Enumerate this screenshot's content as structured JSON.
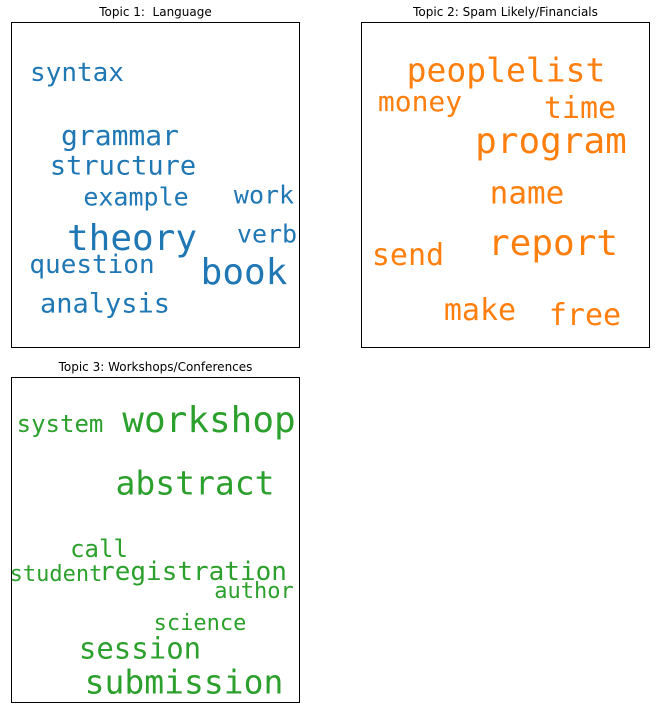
{
  "chart_data": [
    {
      "type": "wordcloud",
      "title": "Topic 1:  Language",
      "color": "#1f77b4",
      "words": [
        {
          "text": "syntax",
          "weight": 0.72
        },
        {
          "text": "grammar",
          "weight": 0.78
        },
        {
          "text": "structure",
          "weight": 0.75
        },
        {
          "text": "example",
          "weight": 0.68
        },
        {
          "text": "work",
          "weight": 0.7
        },
        {
          "text": "theory",
          "weight": 1.0
        },
        {
          "text": "verb",
          "weight": 0.7
        },
        {
          "text": "book",
          "weight": 1.0
        },
        {
          "text": "question",
          "weight": 0.72
        },
        {
          "text": "analysis",
          "weight": 0.75
        }
      ]
    },
    {
      "type": "wordcloud",
      "title": "Topic 2: Spam Likely/Financials",
      "color": "#ff7f0e",
      "words": [
        {
          "text": "peoplelist",
          "weight": 0.9
        },
        {
          "text": "money",
          "weight": 0.78
        },
        {
          "text": "time",
          "weight": 0.85
        },
        {
          "text": "program",
          "weight": 1.0
        },
        {
          "text": "name",
          "weight": 0.85
        },
        {
          "text": "report",
          "weight": 1.0
        },
        {
          "text": "send",
          "weight": 0.82
        },
        {
          "text": "make",
          "weight": 0.82
        },
        {
          "text": "free",
          "weight": 0.85
        }
      ]
    },
    {
      "type": "wordcloud",
      "title": "Topic 3: Workshops/Conferences",
      "color": "#2ca02c",
      "words": [
        {
          "text": "system",
          "weight": 0.72
        },
        {
          "text": "workshop",
          "weight": 1.0
        },
        {
          "text": "abstract",
          "weight": 0.95
        },
        {
          "text": "call",
          "weight": 0.72
        },
        {
          "text": "student",
          "weight": 0.68
        },
        {
          "text": "registration",
          "weight": 0.78
        },
        {
          "text": "author",
          "weight": 0.68
        },
        {
          "text": "science",
          "weight": 0.65
        },
        {
          "text": "session",
          "weight": 0.85
        },
        {
          "text": "submission",
          "weight": 0.95
        }
      ]
    }
  ]
}
